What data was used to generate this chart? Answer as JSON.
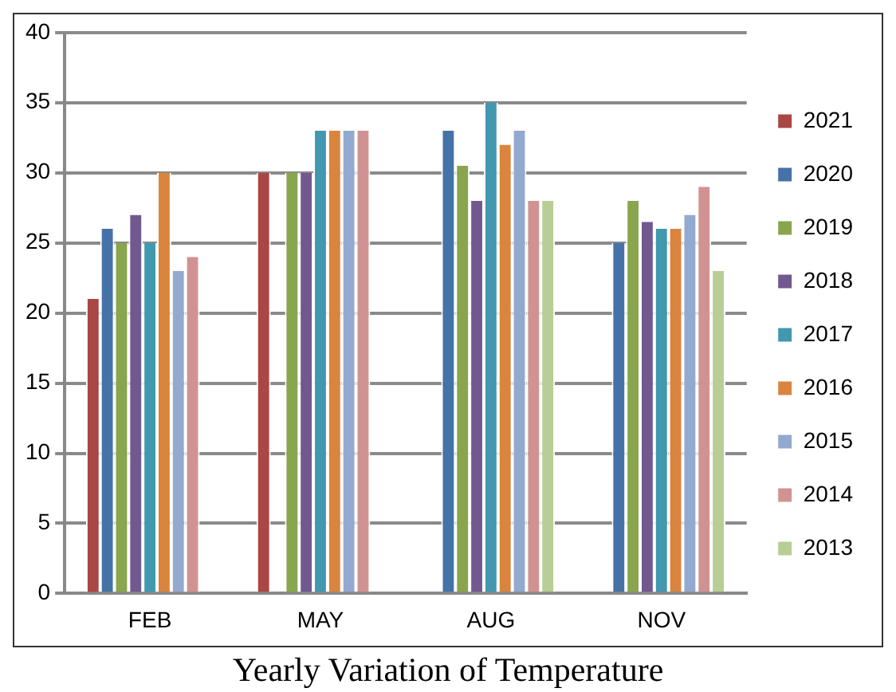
{
  "chart_data": {
    "type": "bar",
    "title": "Yearly Variation of Temperature",
    "categories": [
      "FEB",
      "MAY",
      "AUG",
      "NOV"
    ],
    "series": [
      {
        "name": "2021",
        "color": "#aa4643",
        "values": [
          21,
          30,
          null,
          null
        ]
      },
      {
        "name": "2020",
        "color": "#4572a7",
        "values": [
          26,
          null,
          33,
          25
        ]
      },
      {
        "name": "2019",
        "color": "#89a54e",
        "values": [
          25,
          30,
          30.5,
          28
        ]
      },
      {
        "name": "2018",
        "color": "#71588f",
        "values": [
          27,
          30,
          28,
          26.5
        ]
      },
      {
        "name": "2017",
        "color": "#4198af",
        "values": [
          25,
          33,
          35,
          26
        ]
      },
      {
        "name": "2016",
        "color": "#db843d",
        "values": [
          30,
          33,
          32,
          26
        ]
      },
      {
        "name": "2015",
        "color": "#93a9cf",
        "values": [
          23,
          33,
          33,
          27
        ]
      },
      {
        "name": "2014",
        "color": "#d19392",
        "values": [
          24,
          33,
          28,
          29
        ]
      },
      {
        "name": "2013",
        "color": "#b9cd96",
        "values": [
          null,
          null,
          28,
          23
        ]
      }
    ],
    "ylim": [
      0,
      40
    ],
    "yticks": [
      0,
      5,
      10,
      15,
      20,
      25,
      30,
      35,
      40
    ],
    "grid": "y",
    "legend": "right"
  }
}
